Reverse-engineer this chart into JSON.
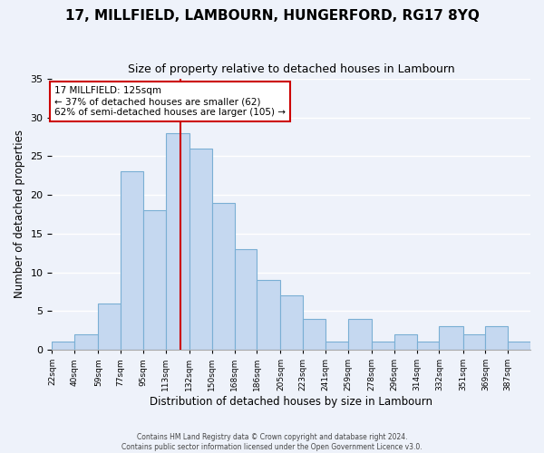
{
  "title": "17, MILLFIELD, LAMBOURN, HUNGERFORD, RG17 8YQ",
  "subtitle": "Size of property relative to detached houses in Lambourn",
  "xlabel": "Distribution of detached houses by size in Lambourn",
  "ylabel": "Number of detached properties",
  "bin_labels": [
    "22sqm",
    "40sqm",
    "59sqm",
    "77sqm",
    "95sqm",
    "113sqm",
    "132sqm",
    "150sqm",
    "168sqm",
    "186sqm",
    "205sqm",
    "223sqm",
    "241sqm",
    "259sqm",
    "278sqm",
    "296sqm",
    "314sqm",
    "332sqm",
    "351sqm",
    "369sqm",
    "387sqm"
  ],
  "bar_values": [
    1,
    2,
    6,
    23,
    18,
    28,
    26,
    19,
    13,
    9,
    7,
    4,
    1,
    4,
    1,
    2,
    1,
    3,
    2,
    3,
    1
  ],
  "bar_color": "#c5d8f0",
  "bar_edgecolor": "#7aafd4",
  "property_line_x": 125,
  "annotation_text": "17 MILLFIELD: 125sqm\n← 37% of detached houses are smaller (62)\n62% of semi-detached houses are larger (105) →",
  "annotation_box_color": "#ffffff",
  "annotation_box_edgecolor": "#cc0000",
  "vline_color": "#cc0000",
  "ylim": [
    0,
    35
  ],
  "yticks": [
    0,
    5,
    10,
    15,
    20,
    25,
    30,
    35
  ],
  "footer_line1": "Contains HM Land Registry data © Crown copyright and database right 2024.",
  "footer_line2": "Contains public sector information licensed under the Open Government Licence v3.0.",
  "background_color": "#eef2fa",
  "plot_background": "#eef2fa",
  "bin_edges": [
    22,
    40,
    59,
    77,
    95,
    113,
    132,
    150,
    168,
    186,
    205,
    223,
    241,
    259,
    278,
    296,
    314,
    332,
    351,
    369,
    387,
    405
  ]
}
